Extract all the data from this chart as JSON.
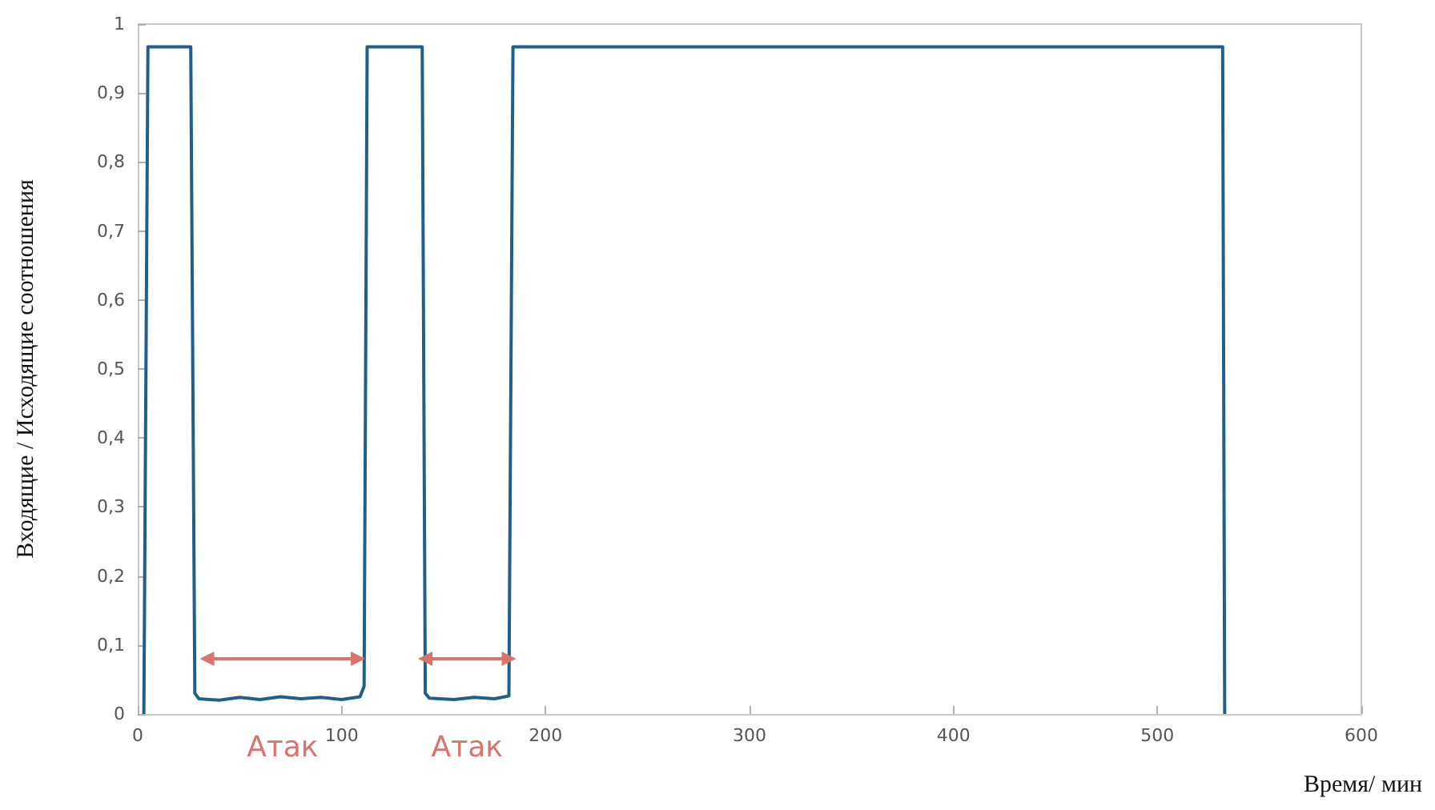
{
  "chart_data": {
    "type": "line",
    "xlabel": "Время/ мин",
    "ylabel": "Входящие / Исходящие соотношения",
    "series": [
      {
        "color": "#1f5f8b",
        "x": [
          3,
          5,
          26,
          28,
          30,
          40,
          50,
          60,
          70,
          80,
          90,
          100,
          109,
          111,
          112.5,
          139.5,
          141,
          143,
          155,
          165,
          175,
          182,
          184,
          532,
          533
        ],
        "values": [
          0,
          0.967,
          0.967,
          0.03,
          0.022,
          0.02,
          0.024,
          0.021,
          0.025,
          0.022,
          0.024,
          0.021,
          0.025,
          0.04,
          0.967,
          0.967,
          0.03,
          0.023,
          0.021,
          0.024,
          0.022,
          0.026,
          0.967,
          0.967,
          0
        ]
      },
      {
        "name": "Атак",
        "color": "#d9736b",
        "marker": "triangle",
        "x": [
          34,
          108
        ],
        "values": [
          0.08,
          0.08
        ]
      },
      {
        "name": "Атак",
        "color": "#d9736b",
        "marker": "triangle",
        "x": [
          141,
          182
        ],
        "values": [
          0.08,
          0.08
        ]
      }
    ],
    "xlim": [
      0,
      600
    ],
    "xticks": [
      0,
      100,
      200,
      300,
      400,
      500,
      600
    ],
    "ylim": [
      0,
      1
    ],
    "yticks": [
      0,
      {
        "value": 0.1,
        "label": "0,1"
      },
      {
        "value": 0.2,
        "label": "0,2"
      },
      {
        "value": 0.3,
        "label": "0,3"
      },
      {
        "value": 0.4,
        "label": "0,4"
      },
      {
        "value": 0.5,
        "label": "0,5"
      },
      {
        "value": 0.6,
        "label": "0,6"
      },
      {
        "value": 0.7,
        "label": "0,7"
      },
      {
        "value": 0.8,
        "label": "0,8"
      },
      {
        "value": 0.9,
        "label": "0,9"
      },
      1
    ],
    "grid": false,
    "marker": "none",
    "line_style": "solid"
  }
}
